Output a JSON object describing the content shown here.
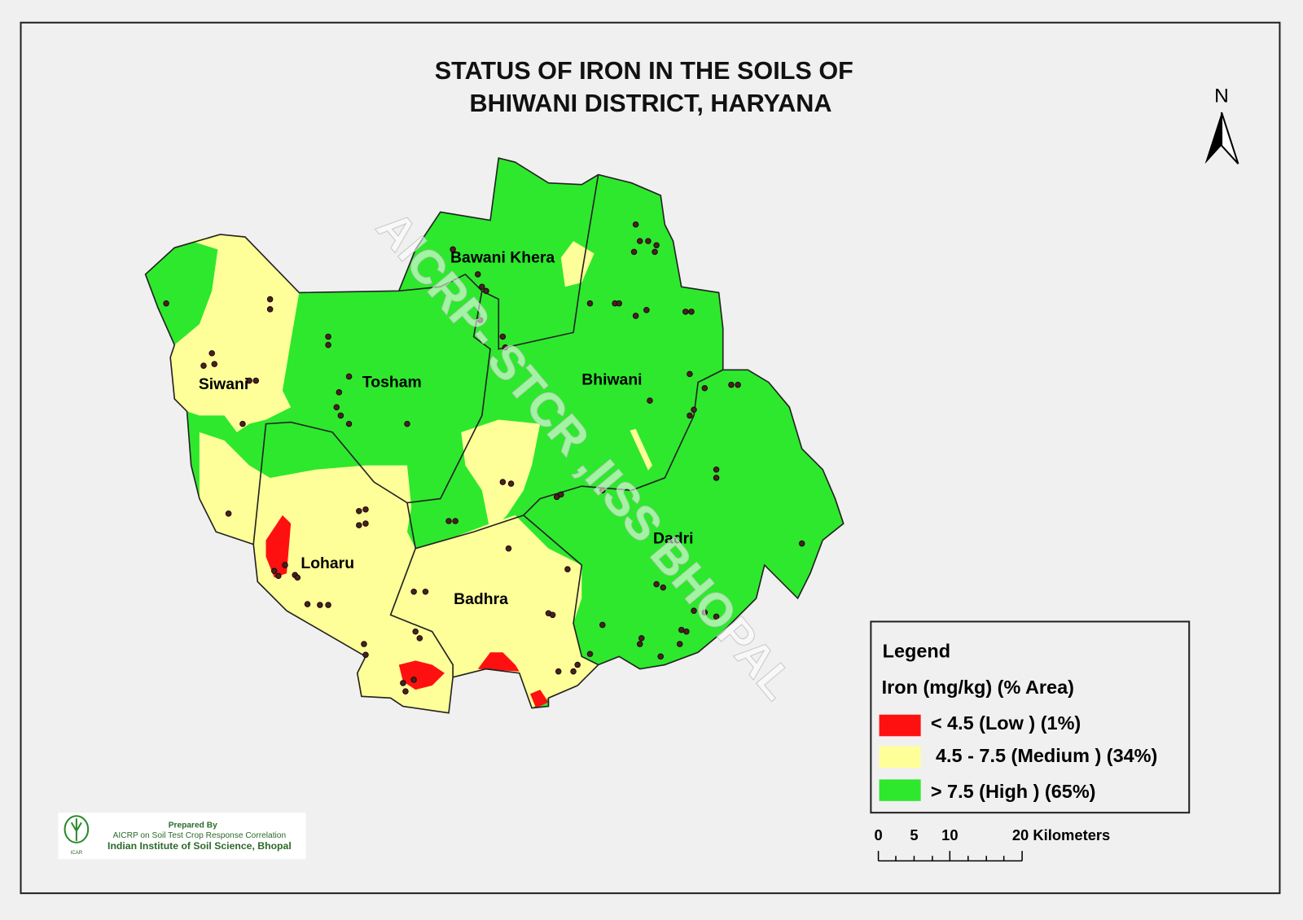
{
  "title": {
    "line1": "STATUS OF IRON  IN THE SOILS OF",
    "line2": "BHIWANI  DISTRICT, HARYANA"
  },
  "north": "N",
  "watermark": "AICRP- STCR ,IISS BHOPAL",
  "blocks": [
    "Bawani Khera",
    "Siwani",
    "Tosham",
    "Bhiwani",
    "Loharu",
    "Badhra",
    "Dadri"
  ],
  "legend": {
    "heading": "Legend",
    "subheading": "Iron (mg/kg) (% Area)",
    "items": [
      "< 4.5 (Low ) (1%)",
      "4.5 - 7.5  (Medium ) (34%)",
      "> 7.5 (High ) (65%)"
    ]
  },
  "scale": {
    "labels": [
      "0",
      "5",
      "10",
      "20 Kilometers"
    ]
  },
  "credit": {
    "prepared": "Prepared By",
    "project": "AICRP on Soil Test Crop Response Correlation",
    "institute": "Indian Institute of Soil Science, Bhopal"
  }
}
